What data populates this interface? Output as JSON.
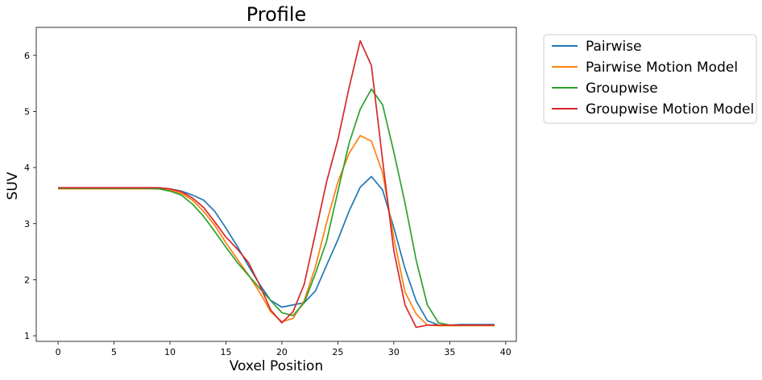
{
  "chart_data": {
    "type": "line",
    "title": "Profile",
    "xlabel": "Voxel Position",
    "ylabel": "SUV",
    "xlim": [
      -1.95,
      40.95
    ],
    "ylim": [
      0.9,
      6.5
    ],
    "xticks": [
      0,
      5,
      10,
      15,
      20,
      25,
      30,
      35,
      40
    ],
    "yticks": [
      1,
      2,
      3,
      4,
      5,
      6
    ],
    "legend_position": "outside-top-right",
    "grid": false,
    "x": [
      0,
      1,
      2,
      3,
      4,
      5,
      6,
      7,
      8,
      9,
      10,
      11,
      12,
      13,
      14,
      15,
      16,
      17,
      18,
      19,
      20,
      21,
      22,
      23,
      24,
      25,
      26,
      27,
      28,
      29,
      30,
      31,
      32,
      33,
      34,
      35,
      36,
      37,
      38,
      39
    ],
    "series": [
      {
        "name": "Pairwise",
        "color": "#1f77b4",
        "values": [
          3.64,
          3.64,
          3.64,
          3.64,
          3.64,
          3.64,
          3.64,
          3.64,
          3.64,
          3.64,
          3.62,
          3.58,
          3.51,
          3.42,
          3.22,
          2.92,
          2.6,
          2.25,
          1.92,
          1.63,
          1.51,
          1.55,
          1.59,
          1.8,
          2.26,
          2.71,
          3.22,
          3.65,
          3.84,
          3.6,
          2.93,
          2.2,
          1.62,
          1.27,
          1.19,
          1.19,
          1.2,
          1.2,
          1.2,
          1.2
        ]
      },
      {
        "name": "Pairwise Motion Model",
        "color": "#ff7f0e",
        "values": [
          3.62,
          3.62,
          3.62,
          3.62,
          3.62,
          3.62,
          3.62,
          3.62,
          3.62,
          3.62,
          3.6,
          3.54,
          3.42,
          3.22,
          2.97,
          2.66,
          2.37,
          2.09,
          1.78,
          1.43,
          1.25,
          1.31,
          1.63,
          2.23,
          3.02,
          3.74,
          4.25,
          4.57,
          4.47,
          3.91,
          2.75,
          1.78,
          1.39,
          1.19,
          1.18,
          1.18,
          1.18,
          1.18,
          1.18,
          1.18
        ]
      },
      {
        "name": "Groupwise",
        "color": "#2ca02c",
        "values": [
          3.63,
          3.63,
          3.63,
          3.63,
          3.63,
          3.63,
          3.63,
          3.63,
          3.63,
          3.62,
          3.58,
          3.51,
          3.35,
          3.13,
          2.86,
          2.58,
          2.31,
          2.08,
          1.85,
          1.63,
          1.41,
          1.36,
          1.59,
          2.11,
          2.69,
          3.57,
          4.43,
          5.04,
          5.4,
          5.12,
          4.28,
          3.37,
          2.35,
          1.55,
          1.23,
          1.19,
          1.19,
          1.19,
          1.19,
          1.19
        ]
      },
      {
        "name": "Groupwise Motion Model",
        "color": "#d62728",
        "values": [
          3.64,
          3.64,
          3.64,
          3.64,
          3.64,
          3.64,
          3.64,
          3.64,
          3.64,
          3.64,
          3.62,
          3.57,
          3.46,
          3.29,
          3.03,
          2.76,
          2.55,
          2.31,
          1.91,
          1.46,
          1.23,
          1.43,
          1.92,
          2.83,
          3.75,
          4.49,
          5.42,
          6.26,
          5.82,
          4.13,
          2.52,
          1.55,
          1.15,
          1.19,
          1.19,
          1.19,
          1.19,
          1.19,
          1.19,
          1.19
        ]
      }
    ]
  }
}
